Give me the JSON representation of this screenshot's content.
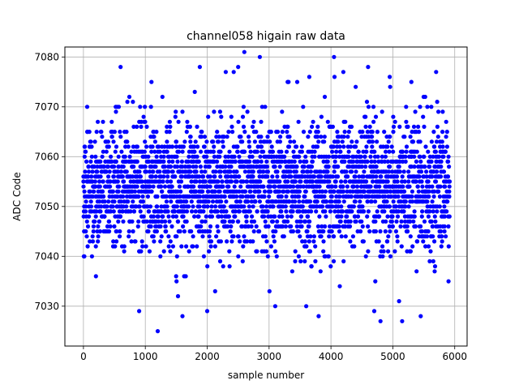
{
  "chart_data": {
    "type": "scatter",
    "title": "channel058 higain raw data",
    "xlabel": "sample number",
    "ylabel": "ADC Code",
    "xlim": [
      -300,
      6200
    ],
    "ylim": [
      7022,
      7082
    ],
    "x_ticks": [
      0,
      1000,
      2000,
      3000,
      4000,
      5000,
      6000
    ],
    "y_ticks": [
      7030,
      7040,
      7050,
      7060,
      7070,
      7080
    ],
    "x_tick_labels": [
      "0",
      "1000",
      "2000",
      "3000",
      "4000",
      "5000",
      "6000"
    ],
    "y_tick_labels": [
      "7030",
      "7040",
      "7050",
      "7060",
      "7070",
      "7080"
    ],
    "grid": true,
    "marker_color": "#0000ff",
    "n_samples": 5920,
    "series": [
      {
        "points": [
          [
            0,
            7055
          ],
          [
            100,
            7062
          ],
          [
            200,
            7048
          ],
          [
            300,
            7052
          ],
          [
            400,
            7058
          ],
          [
            500,
            7046
          ],
          [
            600,
            7078
          ],
          [
            700,
            7054
          ],
          [
            800,
            7050
          ],
          [
            900,
            7029
          ],
          [
            1000,
            7058
          ],
          [
            1100,
            7075
          ],
          [
            1200,
            7025
          ],
          [
            1300,
            7060
          ],
          [
            1400,
            7052
          ],
          [
            1500,
            7048
          ],
          [
            1600,
            7028
          ],
          [
            1700,
            7056
          ],
          [
            1800,
            7073
          ],
          [
            1880,
            7078
          ],
          [
            2000,
            7029
          ],
          [
            2100,
            7055
          ],
          [
            2300,
            7077
          ],
          [
            2500,
            7078
          ],
          [
            2600,
            7081
          ],
          [
            2850,
            7080
          ],
          [
            3100,
            7030
          ],
          [
            3300,
            7075
          ],
          [
            3600,
            7030
          ],
          [
            3650,
            7076
          ],
          [
            3800,
            7028
          ],
          [
            3900,
            7072
          ],
          [
            4050,
            7080
          ],
          [
            4200,
            7077
          ],
          [
            4400,
            7074
          ],
          [
            4600,
            7078
          ],
          [
            4700,
            7029
          ],
          [
            4800,
            7027
          ],
          [
            4950,
            7076
          ],
          [
            5100,
            7031
          ],
          [
            5150,
            7027
          ],
          [
            5300,
            7075
          ],
          [
            5450,
            7028
          ],
          [
            5700,
            7077
          ],
          [
            5900,
            7035
          ]
        ]
      }
    ]
  }
}
